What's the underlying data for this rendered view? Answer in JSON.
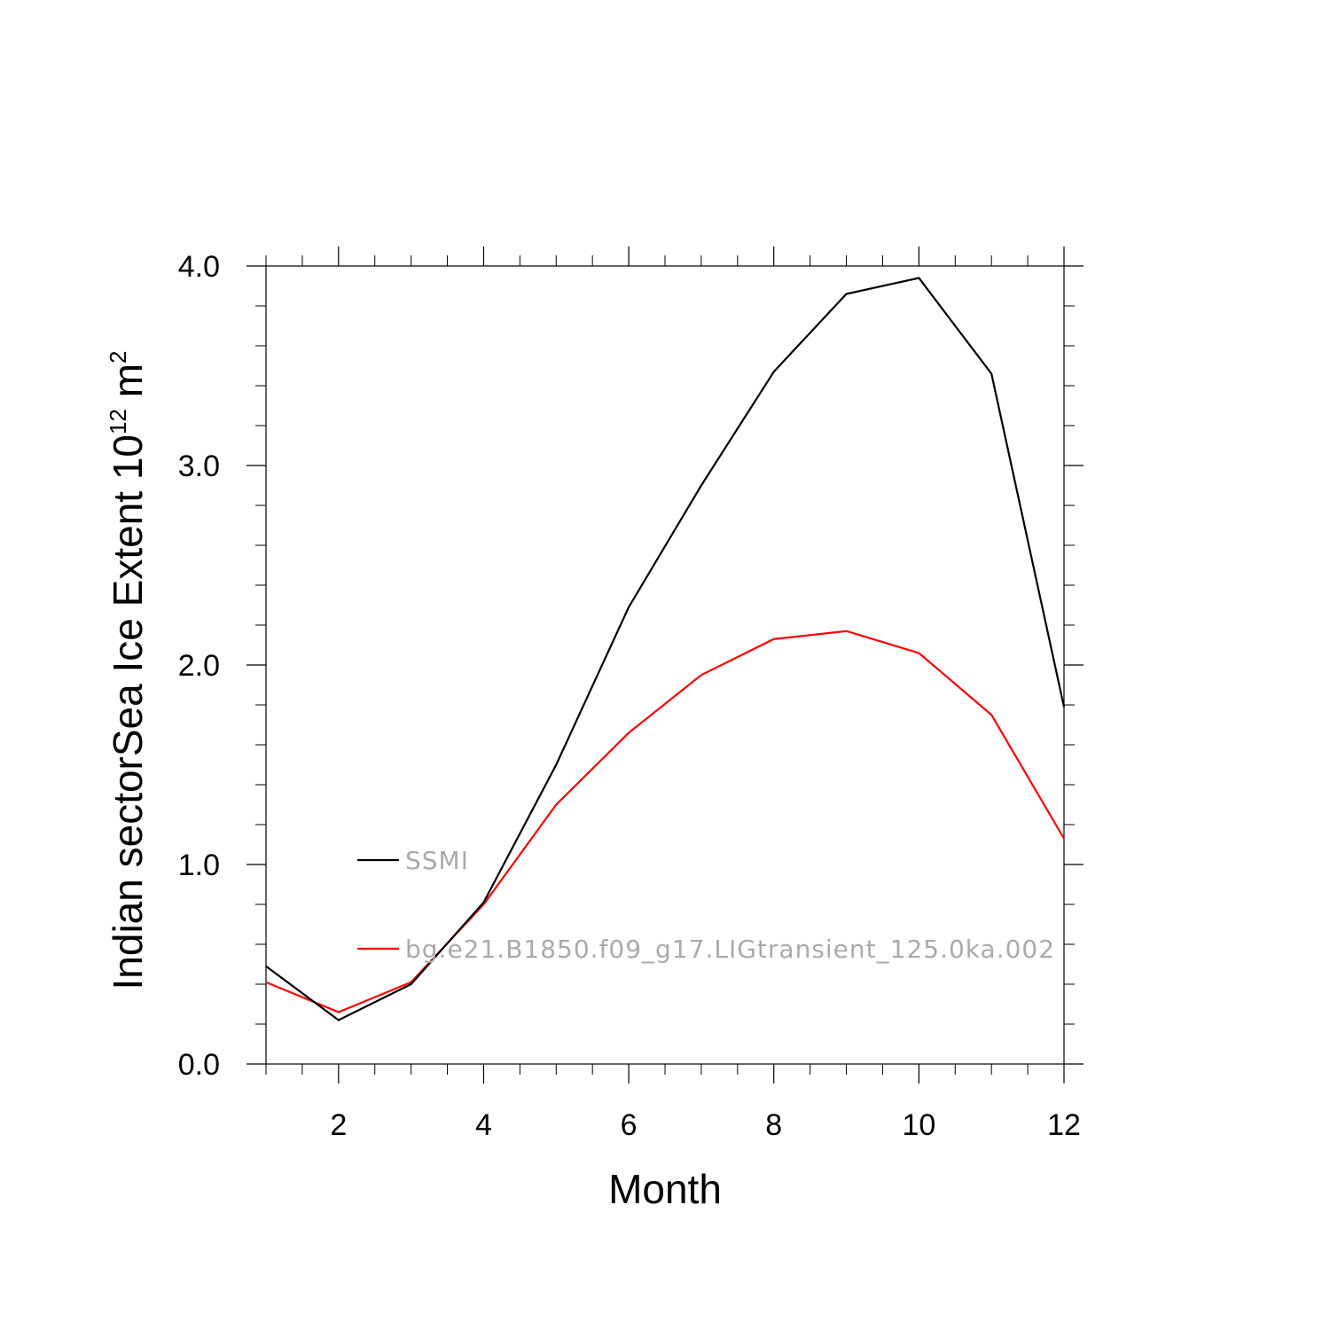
{
  "chart_data": {
    "type": "line",
    "xlabel": "Month",
    "ylabel": "Indian sectorSea Ice Extent 10",
    "ylabel_exp": "12",
    "ylabel_unit": " m",
    "ylabel_unit_exp": "2",
    "xlim": [
      1,
      12
    ],
    "ylim": [
      0,
      4
    ],
    "xticks": [
      2,
      4,
      6,
      8,
      10,
      12
    ],
    "yticks": [
      0.0,
      1.0,
      2.0,
      3.0,
      4.0
    ],
    "ytick_labels": [
      "0.0",
      "1.0",
      "2.0",
      "3.0",
      "4.0"
    ],
    "x": [
      1,
      2,
      3,
      4,
      5,
      6,
      7,
      8,
      9,
      10,
      11,
      12
    ],
    "series": [
      {
        "name": "SSMI",
        "color": "#000000",
        "values": [
          0.49,
          0.22,
          0.4,
          0.81,
          1.5,
          2.29,
          2.9,
          3.47,
          3.86,
          3.94,
          3.46,
          1.79
        ]
      },
      {
        "name": "bg.e21.B1850.f09_g17.LIGtransient_125.0ka.002",
        "color": "#ff0000",
        "values": [
          0.41,
          0.26,
          0.41,
          0.8,
          1.3,
          1.66,
          1.95,
          2.13,
          2.17,
          2.06,
          1.75,
          1.13
        ]
      }
    ],
    "grid": false,
    "legend_position": "inside-lower-left"
  }
}
